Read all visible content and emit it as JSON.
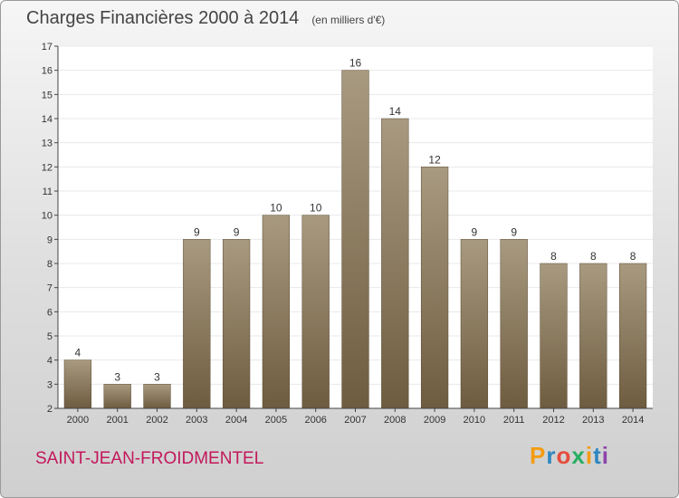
{
  "header": {
    "title": "Charges Financières 2000 à 2014",
    "unit": "(en milliers d'€)"
  },
  "footer": {
    "place": "SAINT-JEAN-FROIDMENTEL",
    "brand": "Proxiti",
    "brand_colors": [
      "#f39c12",
      "#2e86c1",
      "#e74c3c",
      "#27ae60",
      "#f39c12",
      "#2e86c1",
      "#8e44ad"
    ]
  },
  "colors": {
    "bar_top": "#a89a80",
    "bar_bottom": "#6e5c40",
    "axis": "#444444",
    "grid": "#e8e8e8"
  },
  "chart_data": {
    "type": "bar",
    "title": "Charges Financières 2000 à 2014",
    "categories": [
      "2000",
      "2001",
      "2002",
      "2003",
      "2004",
      "2005",
      "2006",
      "2007",
      "2008",
      "2009",
      "2010",
      "2011",
      "2012",
      "2013",
      "2014"
    ],
    "values": [
      4,
      3,
      3,
      9,
      9,
      10,
      10,
      16,
      14,
      12,
      9,
      9,
      8,
      8,
      8
    ],
    "ylim": [
      2,
      17
    ],
    "yticks": [
      2,
      3,
      4,
      5,
      6,
      7,
      8,
      9,
      10,
      11,
      12,
      13,
      14,
      15,
      16,
      17
    ],
    "grid": true
  }
}
